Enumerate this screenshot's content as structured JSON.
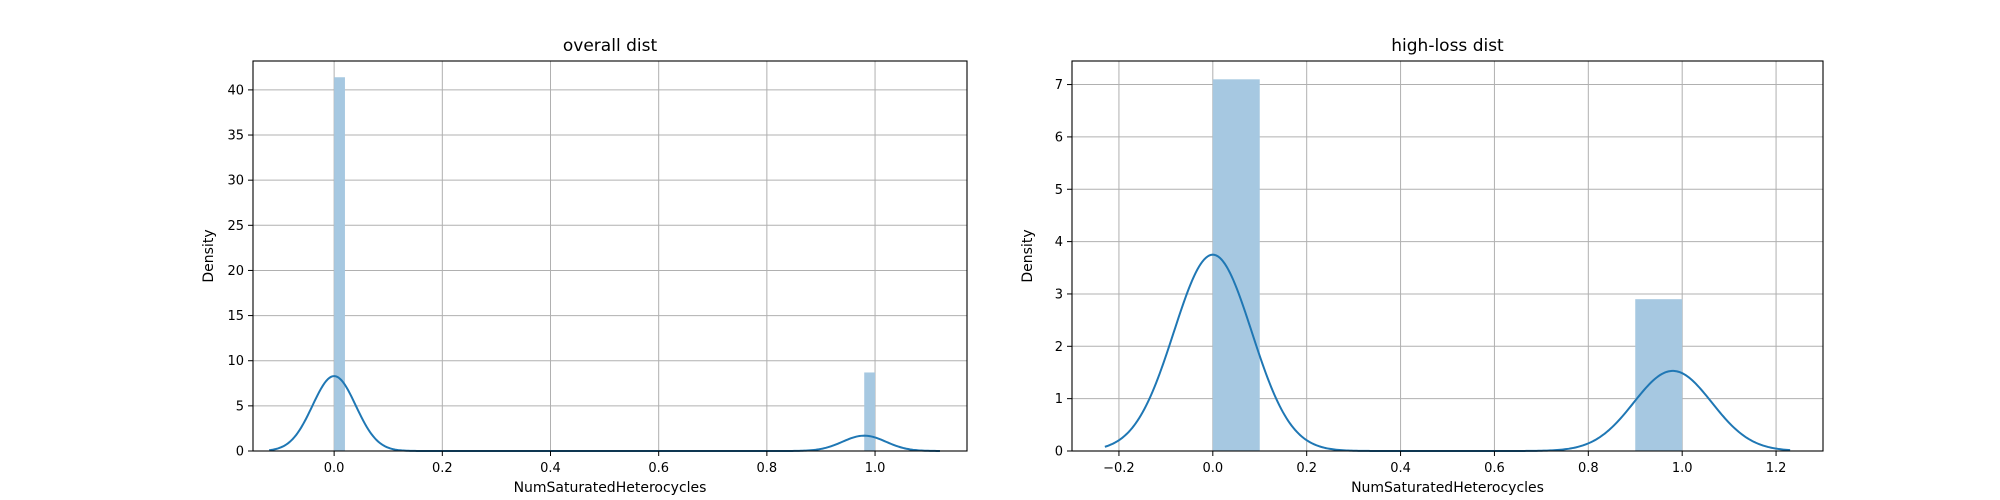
{
  "chart_data": [
    {
      "type": "bar",
      "title": "overall dist",
      "xlabel": "NumSaturatedHeterocycles",
      "ylabel": "Density",
      "xlim": [
        -0.15,
        1.17
      ],
      "ylim": [
        0,
        43.2
      ],
      "xticks": [
        0.0,
        0.2,
        0.4,
        0.6,
        0.8,
        1.0
      ],
      "xtick_labels": [
        "0.0",
        "0.2",
        "0.4",
        "0.6",
        "0.8",
        "1.0"
      ],
      "yticks": [
        0,
        5,
        10,
        15,
        20,
        25,
        30,
        35,
        40
      ],
      "ytick_labels": [
        "0",
        "5",
        "10",
        "15",
        "20",
        "25",
        "30",
        "35",
        "40"
      ],
      "grid": true,
      "histogram": {
        "bins": [
          {
            "x0": 0.0,
            "x1": 0.02,
            "density": 41.4
          },
          {
            "x0": 0.98,
            "x1": 1.0,
            "density": 8.7
          }
        ]
      },
      "kde": {
        "range": [
          -0.12,
          1.12
        ],
        "components": [
          {
            "mu": 0.0,
            "sigma": 0.04,
            "peak": 8.3
          },
          {
            "mu": 0.98,
            "sigma": 0.04,
            "peak": 1.7
          }
        ]
      },
      "colors": {
        "hist": "#a6c8e1",
        "kde": "#1f77b4"
      }
    },
    {
      "type": "bar",
      "title": "high-loss dist",
      "xlabel": "NumSaturatedHeterocycles",
      "ylabel": "Density",
      "xlim": [
        -0.3,
        1.3
      ],
      "ylim": [
        0,
        7.45
      ],
      "xticks": [
        -0.2,
        0.0,
        0.2,
        0.4,
        0.6,
        0.8,
        1.0,
        1.2
      ],
      "xtick_labels": [
        "−0.2",
        "0.0",
        "0.2",
        "0.4",
        "0.6",
        "0.8",
        "1.0",
        "1.2"
      ],
      "yticks": [
        0,
        1,
        2,
        3,
        4,
        5,
        6,
        7
      ],
      "ytick_labels": [
        "0",
        "1",
        "2",
        "3",
        "4",
        "5",
        "6",
        "7"
      ],
      "grid": true,
      "histogram": {
        "bins": [
          {
            "x0": 0.0,
            "x1": 0.1,
            "density": 7.1
          },
          {
            "x0": 0.9,
            "x1": 1.0,
            "density": 2.9
          }
        ]
      },
      "kde": {
        "range": [
          -0.23,
          1.23
        ],
        "components": [
          {
            "mu": 0.0,
            "sigma": 0.083,
            "peak": 3.75
          },
          {
            "mu": 0.98,
            "sigma": 0.083,
            "peak": 1.53
          }
        ]
      },
      "colors": {
        "hist": "#a6c8e1",
        "kde": "#1f77b4"
      }
    }
  ]
}
